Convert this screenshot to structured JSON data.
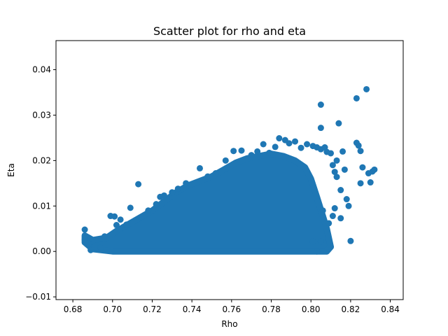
{
  "chart_data": {
    "type": "scatter",
    "title": "Scatter plot for rho and eta",
    "xlabel": "Rho",
    "ylabel": "Eta",
    "xlim": [
      0.6715,
      0.8465
    ],
    "ylim": [
      -0.0106,
      0.0464
    ],
    "xticks": [
      0.68,
      0.7,
      0.72,
      0.74,
      0.76,
      0.78,
      0.8,
      0.82,
      0.84
    ],
    "xtick_labels": [
      "0.68",
      "0.70",
      "0.72",
      "0.74",
      "0.76",
      "0.78",
      "0.80",
      "0.82",
      "0.84"
    ],
    "yticks": [
      -0.01,
      0.0,
      0.01,
      0.02,
      0.03,
      0.04
    ],
    "ytick_labels": [
      "−0.01",
      "0.00",
      "0.01",
      "0.02",
      "0.03",
      "0.04"
    ],
    "grid": false,
    "marker_color": "#1f77b4",
    "dense_region": [
      [
        0.686,
        0.0035
      ],
      [
        0.69,
        0.0025
      ],
      [
        0.697,
        0.003
      ],
      [
        0.702,
        0.0045
      ],
      [
        0.708,
        0.006
      ],
      [
        0.714,
        0.0075
      ],
      [
        0.72,
        0.009
      ],
      [
        0.726,
        0.011
      ],
      [
        0.732,
        0.013
      ],
      [
        0.738,
        0.0145
      ],
      [
        0.744,
        0.0155
      ],
      [
        0.75,
        0.0165
      ],
      [
        0.756,
        0.018
      ],
      [
        0.762,
        0.0195
      ],
      [
        0.768,
        0.0205
      ],
      [
        0.774,
        0.021
      ],
      [
        0.78,
        0.0215
      ],
      [
        0.786,
        0.021
      ],
      [
        0.792,
        0.02
      ],
      [
        0.797,
        0.0185
      ],
      [
        0.8,
        0.016
      ],
      [
        0.803,
        0.012
      ],
      [
        0.808,
        0.005
      ],
      [
        0.81,
        0.001
      ],
      [
        0.808,
        0.0
      ],
      [
        0.7,
        0.0
      ],
      [
        0.69,
        0.0005
      ],
      [
        0.686,
        0.002
      ]
    ],
    "points": [
      [
        0.686,
        0.0048
      ],
      [
        0.686,
        0.0026
      ],
      [
        0.688,
        0.0018
      ],
      [
        0.689,
        0.0003
      ],
      [
        0.691,
        0.001
      ],
      [
        0.694,
        0.0008
      ],
      [
        0.696,
        0.0033
      ],
      [
        0.699,
        0.0078
      ],
      [
        0.701,
        0.0077
      ],
      [
        0.702,
        0.0058
      ],
      [
        0.704,
        0.007
      ],
      [
        0.707,
        0.0059
      ],
      [
        0.709,
        0.0096
      ],
      [
        0.713,
        0.0148
      ],
      [
        0.718,
        0.009
      ],
      [
        0.722,
        0.0104
      ],
      [
        0.724,
        0.012
      ],
      [
        0.726,
        0.0123
      ],
      [
        0.73,
        0.013
      ],
      [
        0.733,
        0.0138
      ],
      [
        0.737,
        0.015
      ],
      [
        0.744,
        0.0183
      ],
      [
        0.748,
        0.0165
      ],
      [
        0.752,
        0.0172
      ],
      [
        0.757,
        0.02
      ],
      [
        0.761,
        0.0221
      ],
      [
        0.765,
        0.0222
      ],
      [
        0.77,
        0.0212
      ],
      [
        0.773,
        0.022
      ],
      [
        0.776,
        0.0236
      ],
      [
        0.779,
        0.0217
      ],
      [
        0.782,
        0.023
      ],
      [
        0.784,
        0.0249
      ],
      [
        0.787,
        0.0245
      ],
      [
        0.789,
        0.0238
      ],
      [
        0.792,
        0.0242
      ],
      [
        0.795,
        0.0228
      ],
      [
        0.798,
        0.0236
      ],
      [
        0.801,
        0.0232
      ],
      [
        0.803,
        0.0229
      ],
      [
        0.805,
        0.0225
      ],
      [
        0.805,
        0.0323
      ],
      [
        0.805,
        0.0272
      ],
      [
        0.807,
        0.0229
      ],
      [
        0.808,
        0.0219
      ],
      [
        0.81,
        0.0216
      ],
      [
        0.811,
        0.019
      ],
      [
        0.812,
        0.0175
      ],
      [
        0.813,
        0.02
      ],
      [
        0.813,
        0.0164
      ],
      [
        0.814,
        0.0282
      ],
      [
        0.815,
        0.0135
      ],
      [
        0.816,
        0.022
      ],
      [
        0.817,
        0.018
      ],
      [
        0.818,
        0.0115
      ],
      [
        0.819,
        0.01
      ],
      [
        0.82,
        0.0023
      ],
      [
        0.823,
        0.0337
      ],
      [
        0.823,
        0.0239
      ],
      [
        0.824,
        0.0233
      ],
      [
        0.825,
        0.0221
      ],
      [
        0.825,
        0.015
      ],
      [
        0.826,
        0.0185
      ],
      [
        0.828,
        0.0357
      ],
      [
        0.829,
        0.0172
      ],
      [
        0.83,
        0.0152
      ],
      [
        0.831,
        0.0176
      ],
      [
        0.832,
        0.018
      ],
      [
        0.805,
        0.0022
      ],
      [
        0.803,
        0.0
      ],
      [
        0.812,
        0.0095
      ],
      [
        0.809,
        0.0062
      ],
      [
        0.815,
        0.0073
      ],
      [
        0.811,
        0.0078
      ],
      [
        0.806,
        0.009
      ],
      [
        0.801,
        0.0022
      ]
    ]
  }
}
